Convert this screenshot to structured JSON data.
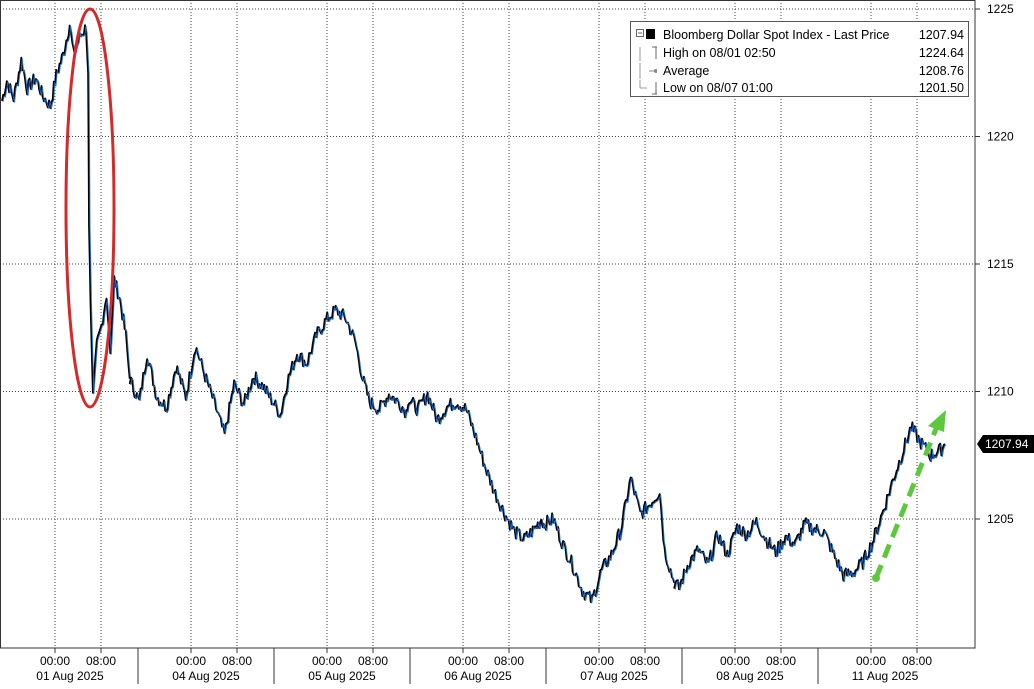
{
  "chart_data": {
    "type": "line",
    "y_axis": {
      "min": 1200,
      "max": 1225,
      "ticks": [
        "1225",
        "1220",
        "1215",
        "1210",
        "1205"
      ],
      "position": "right"
    },
    "x_axis": {
      "tick_labels": [
        "00:00",
        "08:00",
        "00:00",
        "08:00",
        "00:00",
        "08:00",
        "00:00",
        "08:00",
        "00:00",
        "08:00",
        "00:00",
        "08:00",
        "00:00",
        "08:00"
      ],
      "day_labels": [
        "01 Aug 2025",
        "04 Aug 2025",
        "05 Aug 2025",
        "06 Aug 2025",
        "07 Aug 2025",
        "08 Aug 2025",
        "11 Aug 2025"
      ]
    },
    "last_price_tag": "1207.94",
    "legend": {
      "placement": "top-right",
      "rows": [
        {
          "label": "Bloomberg Dollar Spot Index - Last Price",
          "value": "1207.94"
        },
        {
          "label": "High on 08/01 02:50",
          "value": "1224.64"
        },
        {
          "label": "Average",
          "value": "1208.76"
        },
        {
          "label": "Low on 08/07 01:00",
          "value": "1201.50"
        }
      ]
    },
    "grid": true,
    "colors": {
      "line": "#000000",
      "line_highlight": "#1f6fd1",
      "circle": "#d42a2a",
      "arrow": "#5cc83c"
    },
    "series": [
      {
        "values": [
          {
            "t": 0,
            "y": 1221.4
          },
          {
            "t": 0.5,
            "y": 1222.2
          },
          {
            "t": 1.2,
            "y": 1221.5
          },
          {
            "t": 2,
            "y": 1223.0
          },
          {
            "t": 2.6,
            "y": 1221.9
          },
          {
            "t": 3.5,
            "y": 1222.3
          },
          {
            "t": 4.2,
            "y": 1221.6
          },
          {
            "t": 5,
            "y": 1221.2
          },
          {
            "t": 5.6,
            "y": 1222.4
          },
          {
            "t": 6.3,
            "y": 1223.2
          },
          {
            "t": 7,
            "y": 1224.4
          },
          {
            "t": 7.4,
            "y": 1223.2
          },
          {
            "t": 8,
            "y": 1223.9
          },
          {
            "t": 8.7,
            "y": 1224.3
          },
          {
            "t": 8.9,
            "y": 1222.5
          },
          {
            "t": 9,
            "y": 1216.5
          },
          {
            "t": 9.15,
            "y": 1213.5
          },
          {
            "t": 9.4,
            "y": 1209.8
          },
          {
            "t": 9.8,
            "y": 1211.8
          },
          {
            "t": 10.3,
            "y": 1212.6
          },
          {
            "t": 10.8,
            "y": 1213.8
          },
          {
            "t": 11.2,
            "y": 1211.5
          },
          {
            "t": 11.6,
            "y": 1214.4
          },
          {
            "t": 12.2,
            "y": 1213.6
          },
          {
            "t": 12.8,
            "y": 1212.2
          },
          {
            "t": 13.2,
            "y": 1210.5
          },
          {
            "t": 14.2,
            "y": 1209.6
          },
          {
            "t": 15,
            "y": 1211.5
          },
          {
            "t": 16,
            "y": 1209.8
          },
          {
            "t": 17,
            "y": 1209.4
          },
          {
            "t": 18,
            "y": 1211.0
          },
          {
            "t": 19,
            "y": 1209.8
          },
          {
            "t": 20,
            "y": 1211.8
          },
          {
            "t": 21,
            "y": 1210.6
          },
          {
            "t": 22,
            "y": 1209.5
          },
          {
            "t": 23,
            "y": 1208.3
          },
          {
            "t": 24,
            "y": 1210.3
          },
          {
            "t": 25,
            "y": 1209.5
          },
          {
            "t": 26,
            "y": 1210.6
          },
          {
            "t": 27,
            "y": 1210.2
          },
          {
            "t": 28,
            "y": 1209.6
          },
          {
            "t": 28.8,
            "y": 1209.1
          },
          {
            "t": 29.5,
            "y": 1210.4
          },
          {
            "t": 30.5,
            "y": 1211.5
          },
          {
            "t": 31.5,
            "y": 1211.1
          },
          {
            "t": 32.5,
            "y": 1212.2
          },
          {
            "t": 33.5,
            "y": 1212.8
          },
          {
            "t": 34.5,
            "y": 1213.2
          },
          {
            "t": 35.5,
            "y": 1212.9
          },
          {
            "t": 36.5,
            "y": 1212.0
          },
          {
            "t": 37.3,
            "y": 1210.5
          },
          {
            "t": 38,
            "y": 1209.6
          },
          {
            "t": 39,
            "y": 1209.3
          },
          {
            "t": 40,
            "y": 1209.9
          },
          {
            "t": 41,
            "y": 1209.6
          },
          {
            "t": 41.8,
            "y": 1209.2
          },
          {
            "t": 42,
            "y": 1209.7
          },
          {
            "t": 43,
            "y": 1209.3
          },
          {
            "t": 44,
            "y": 1209.9
          },
          {
            "t": 45,
            "y": 1208.9
          },
          {
            "t": 46,
            "y": 1209.4
          },
          {
            "t": 47,
            "y": 1209.6
          },
          {
            "t": 48,
            "y": 1209.3
          },
          {
            "t": 49,
            "y": 1208.2
          },
          {
            "t": 50,
            "y": 1207.0
          },
          {
            "t": 51,
            "y": 1206.0
          },
          {
            "t": 52,
            "y": 1205.2
          },
          {
            "t": 53,
            "y": 1204.5
          },
          {
            "t": 54,
            "y": 1204.2
          },
          {
            "t": 55,
            "y": 1204.6
          },
          {
            "t": 55.8,
            "y": 1205.0
          },
          {
            "t": 56,
            "y": 1204.8
          },
          {
            "t": 57,
            "y": 1205.0
          },
          {
            "t": 58,
            "y": 1204.0
          },
          {
            "t": 59,
            "y": 1203.2
          },
          {
            "t": 60,
            "y": 1202.2
          },
          {
            "t": 61,
            "y": 1201.8
          },
          {
            "t": 62,
            "y": 1203.0
          },
          {
            "t": 63,
            "y": 1203.6
          },
          {
            "t": 64,
            "y": 1204.6
          },
          {
            "t": 65,
            "y": 1206.6
          },
          {
            "t": 66,
            "y": 1205.2
          },
          {
            "t": 67,
            "y": 1205.6
          },
          {
            "t": 68,
            "y": 1206.1
          },
          {
            "t": 68.5,
            "y": 1203.8
          },
          {
            "t": 69.5,
            "y": 1202.5
          },
          {
            "t": 70,
            "y": 1202.3
          },
          {
            "t": 71,
            "y": 1203.3
          },
          {
            "t": 72,
            "y": 1203.8
          },
          {
            "t": 73,
            "y": 1203.2
          },
          {
            "t": 74,
            "y": 1204.4
          },
          {
            "t": 75,
            "y": 1203.6
          },
          {
            "t": 76,
            "y": 1204.7
          },
          {
            "t": 77,
            "y": 1204.4
          },
          {
            "t": 78,
            "y": 1204.9
          },
          {
            "t": 79,
            "y": 1204.2
          },
          {
            "t": 80,
            "y": 1203.7
          },
          {
            "t": 81,
            "y": 1204.3
          },
          {
            "t": 82,
            "y": 1204.0
          },
          {
            "t": 83,
            "y": 1204.8
          },
          {
            "t": 84,
            "y": 1204.6
          },
          {
            "t": 85,
            "y": 1204.5
          },
          {
            "t": 86,
            "y": 1203.6
          },
          {
            "t": 87,
            "y": 1202.8
          },
          {
            "t": 88,
            "y": 1202.9
          },
          {
            "t": 89,
            "y": 1203.3
          },
          {
            "t": 90,
            "y": 1204.1
          },
          {
            "t": 91,
            "y": 1205.2
          },
          {
            "t": 92,
            "y": 1206.4
          },
          {
            "t": 93,
            "y": 1207.5
          },
          {
            "t": 94,
            "y": 1208.6
          },
          {
            "t": 95,
            "y": 1208.0
          },
          {
            "t": 96,
            "y": 1207.5
          },
          {
            "t": 97,
            "y": 1207.7
          },
          {
            "t": 97.5,
            "y": 1207.94
          }
        ]
      }
    ]
  }
}
